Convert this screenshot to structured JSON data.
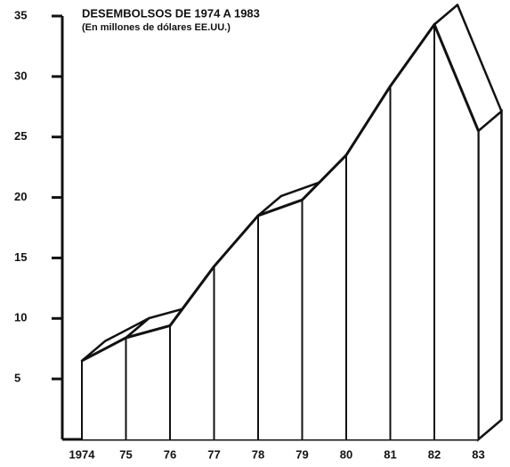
{
  "chart_data": {
    "type": "area3d",
    "title": "DESEMBOLSOS DE 1974 A 1983",
    "subtitle": "(En millones de dólares EE.UU.)",
    "categories": [
      "1974",
      "75",
      "76",
      "77",
      "78",
      "79",
      "80",
      "81",
      "82",
      "83"
    ],
    "values": [
      6.5,
      8.4,
      9.4,
      14.3,
      18.5,
      19.8,
      23.5,
      29.2,
      34.3,
      25.5
    ],
    "color": "#ffffff",
    "ylim": [
      0,
      35
    ],
    "yticks": [
      5,
      10,
      15,
      20,
      25,
      30,
      35
    ]
  }
}
